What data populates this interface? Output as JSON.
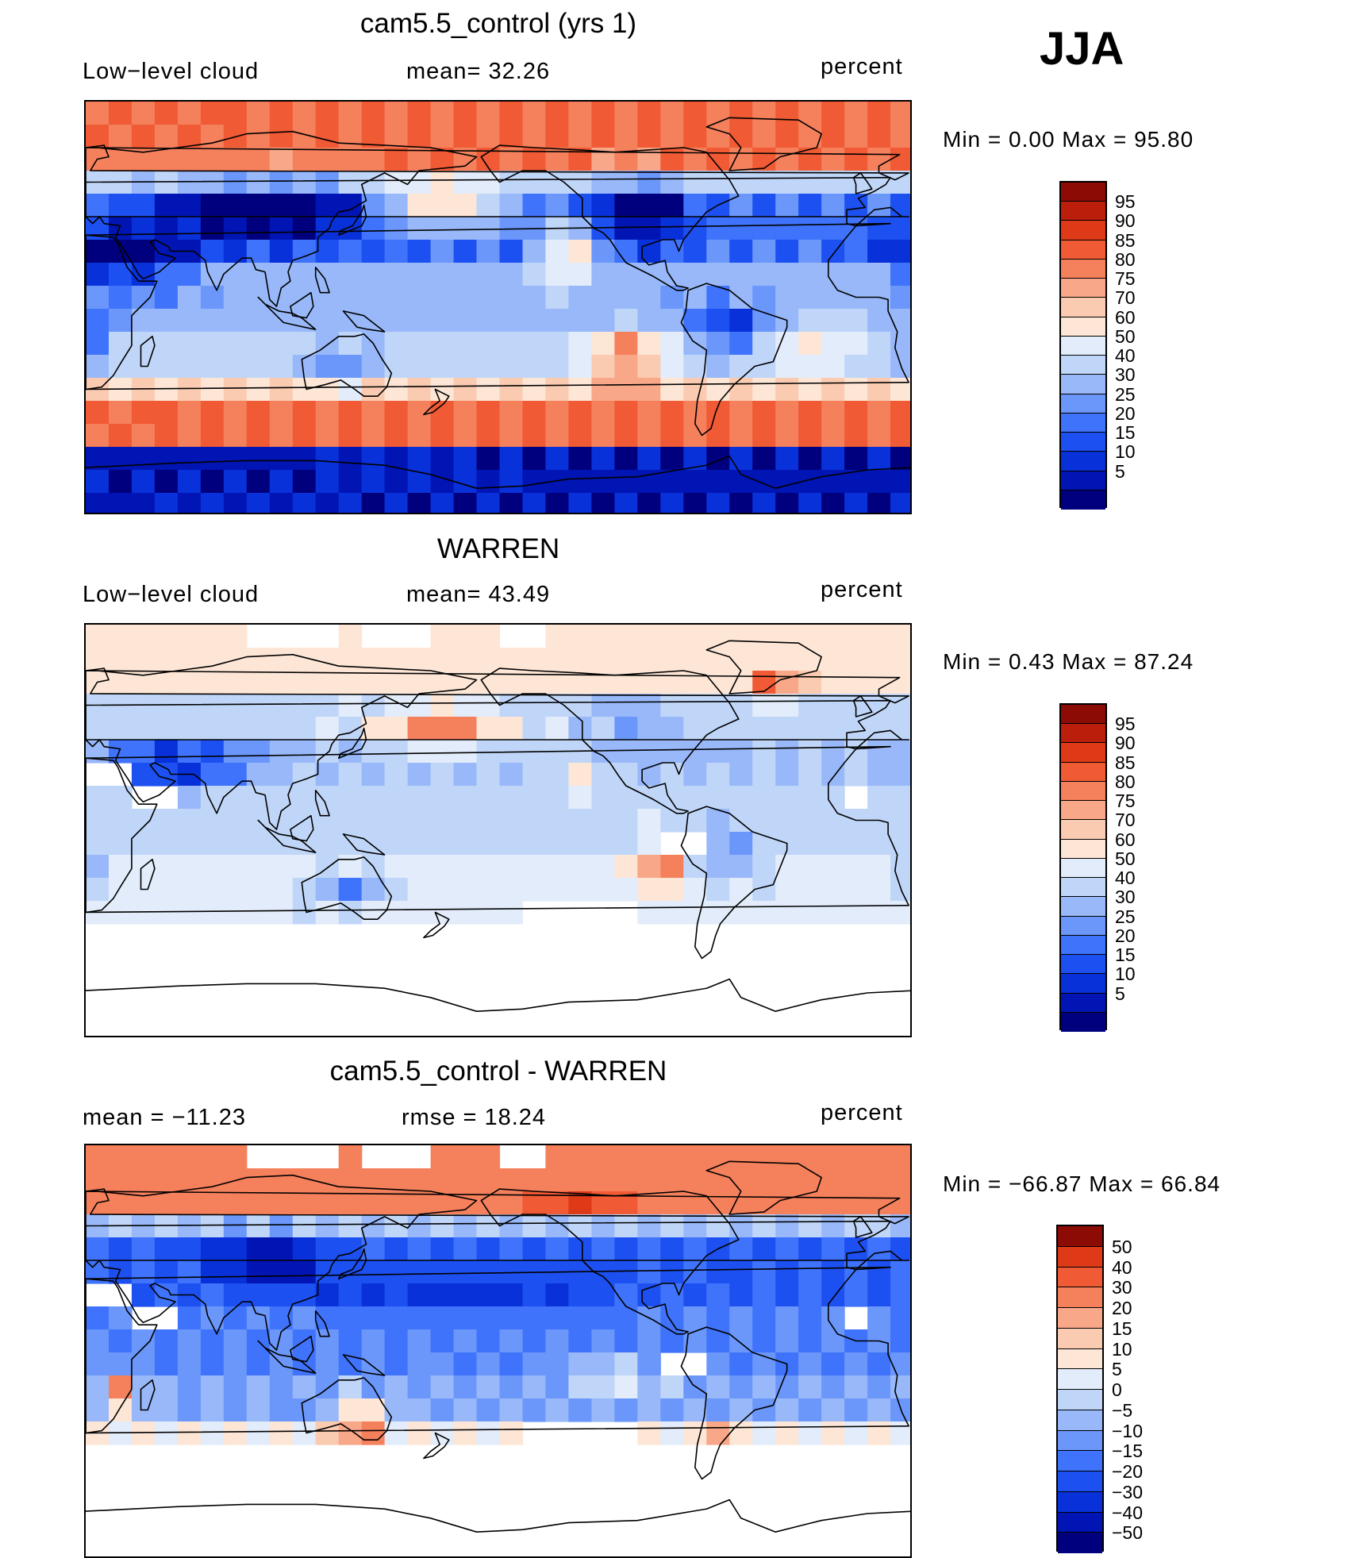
{
  "season": "JJA",
  "palette_full": [
    "#00007f",
    "#0015b3",
    "#0831d9",
    "#1d50f0",
    "#3f73fb",
    "#6b97fb",
    "#98b8f9",
    "#c0d6f8",
    "#e2ecfa",
    "#fde6d6",
    "#fbcbb1",
    "#f8a888",
    "#f5805c",
    "#f05a34",
    "#de3a17",
    "#bb1f0c",
    "#8c0c05"
  ],
  "palette_diff": [
    "#00007f",
    "#0015b3",
    "#0831d9",
    "#1d50f0",
    "#3f73fb",
    "#6b97fb",
    "#98b8f9",
    "#c0d6f8",
    "#e2ecfa",
    "#fde6d6",
    "#fbcbb1",
    "#f8a888",
    "#f5805c",
    "#f05a34",
    "#de3a17",
    "#8c0c05"
  ],
  "panels": [
    {
      "title": "cam5.5_control (yrs 1)",
      "left_label": "Low−level cloud",
      "mid_label": "mean=   32.26",
      "units": "percent",
      "minmax": "Min  =     0.00  Max  =    95.80",
      "colorbar": [
        "95",
        "90",
        "85",
        "80",
        "75",
        "70",
        "60",
        "50",
        "40",
        "30",
        "25",
        "20",
        "15",
        "10",
        "5"
      ],
      "palette": "full",
      "missing": false
    },
    {
      "title": "WARREN",
      "left_label": "Low−level cloud",
      "mid_label": "mean=   43.49",
      "units": "percent",
      "minmax": "Min  =     0.43  Max  =    87.24",
      "colorbar": [
        "95",
        "90",
        "85",
        "80",
        "75",
        "70",
        "60",
        "50",
        "40",
        "30",
        "25",
        "20",
        "15",
        "10",
        "5"
      ],
      "palette": "full",
      "missing": true
    },
    {
      "title": "cam5.5_control - WARREN",
      "left_label": "mean  =  −11.23",
      "mid_label": "rmse  =    18.24",
      "units": "percent",
      "minmax": "Min  =  −66.87  Max  =    66.84",
      "colorbar": [
        "50",
        "40",
        "30",
        "20",
        "15",
        "10",
        "5",
        "0",
        "−5",
        "−10",
        "−15",
        "−20",
        "−30",
        "−40",
        "−50"
      ],
      "palette": "diff",
      "missing": true
    }
  ]
}
